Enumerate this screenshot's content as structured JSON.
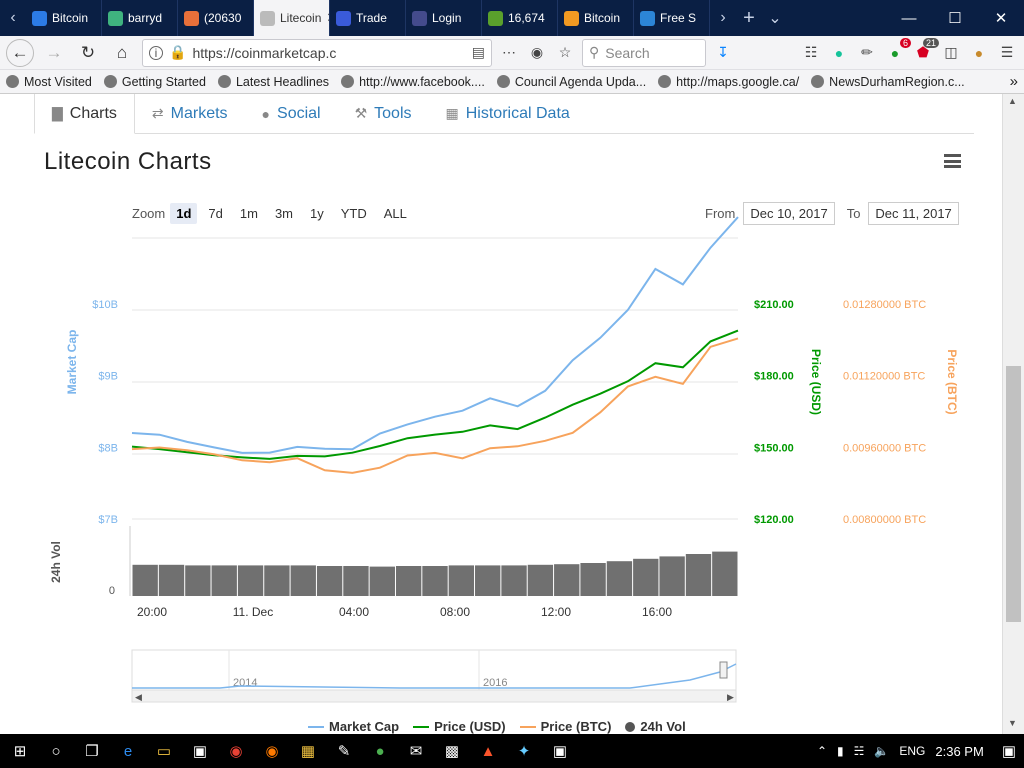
{
  "browser": {
    "tabs": [
      {
        "title": "Bitcoin",
        "color": "#2c7be5"
      },
      {
        "title": "barryd",
        "color": "#3fb37f"
      },
      {
        "title": "(20630",
        "color": "#e8703a"
      },
      {
        "title": "Litecoin",
        "color": "#bbbbbb",
        "active": true
      },
      {
        "title": "Trade",
        "color": "#3a5bd9"
      },
      {
        "title": "Login",
        "color": "#444b8c"
      },
      {
        "title": "16,674",
        "color": "#5aa02c"
      },
      {
        "title": "Bitcoin",
        "color": "#f29a22"
      },
      {
        "title": "Free S",
        "color": "#2c85d6"
      }
    ],
    "url": "https://coinmarketcap.c",
    "search_placeholder": "Search",
    "badges": {
      "ext1": "6",
      "ext2": "21"
    },
    "bookmarks": [
      "Most Visited",
      "Getting Started",
      "Latest Headlines",
      "http://www.facebook....",
      "Council Agenda Upda...",
      "http://maps.google.ca/",
      "NewsDurhamRegion.c..."
    ]
  },
  "content_tabs": [
    {
      "label": "Charts",
      "icon": "bar-chart-icon",
      "active": true
    },
    {
      "label": "Markets",
      "icon": "exchange-icon"
    },
    {
      "label": "Social",
      "icon": "globe-icon"
    },
    {
      "label": "Tools",
      "icon": "wrench-icon"
    },
    {
      "label": "Historical Data",
      "icon": "calendar-icon"
    }
  ],
  "chart_title": "Litecoin Charts",
  "zoom": {
    "label": "Zoom",
    "options": [
      "1d",
      "7d",
      "1m",
      "3m",
      "1y",
      "YTD",
      "ALL"
    ],
    "selected": "1d"
  },
  "range": {
    "from_label": "From",
    "from": "Dec 10, 2017",
    "to_label": "To",
    "to": "Dec 11, 2017"
  },
  "chart_data": {
    "type": "line",
    "x_ticks": [
      "20:00",
      "11. Dec",
      "04:00",
      "08:00",
      "12:00",
      "16:00"
    ],
    "axes": {
      "market_cap": {
        "label": "Market Cap",
        "ticks": [
          "$7B",
          "$8B",
          "$9B",
          "$10B"
        ],
        "color": "#7cb5ec"
      },
      "price_usd": {
        "label": "Price (USD)",
        "ticks": [
          "$120.00",
          "$150.00",
          "$180.00",
          "$210.00"
        ],
        "color": "#009900"
      },
      "price_btc": {
        "label": "Price (BTC)",
        "ticks": [
          "0.00800000 BTC",
          "0.00960000 BTC",
          "0.01120000 BTC",
          "0.01280000 BTC"
        ],
        "color": "#f7a35c"
      },
      "volume": {
        "label": "24h Vol",
        "ticks": [
          "0"
        ]
      }
    },
    "series": [
      {
        "name": "Market Cap",
        "color": "#7cb5ec",
        "values": [
          8.2,
          8.2,
          8.1,
          8.0,
          7.9,
          7.9,
          8.0,
          8.0,
          8.0,
          8.2,
          8.3,
          8.4,
          8.5,
          8.7,
          8.6,
          8.8,
          9.2,
          9.5,
          9.9,
          10.5,
          10.3,
          10.8,
          11.2
        ]
      },
      {
        "name": "Price (USD)",
        "color": "#009900",
        "values": [
          151,
          150,
          148,
          146,
          145,
          145,
          147,
          147,
          148,
          150,
          153,
          155,
          157,
          160,
          158,
          162,
          167,
          172,
          178,
          186,
          184,
          194,
          198
        ]
      },
      {
        "name": "Price (BTC)",
        "color": "#f7a35c",
        "values": [
          0.0096,
          0.0096,
          0.0095,
          0.0094,
          0.0093,
          0.0093,
          0.0094,
          0.0091,
          0.009,
          0.0091,
          0.0094,
          0.0095,
          0.0094,
          0.0096,
          0.0096,
          0.0097,
          0.0099,
          0.0104,
          0.011,
          0.0112,
          0.011,
          0.0118,
          0.012
        ]
      },
      {
        "name": "24h Vol",
        "color": "#555555",
        "values": [
          0.52,
          0.52,
          0.51,
          0.51,
          0.51,
          0.51,
          0.51,
          0.5,
          0.5,
          0.49,
          0.5,
          0.5,
          0.51,
          0.51,
          0.51,
          0.52,
          0.53,
          0.55,
          0.58,
          0.62,
          0.66,
          0.7,
          0.74
        ]
      }
    ],
    "navigator_ticks": [
      "2014",
      "2016"
    ],
    "legend": [
      "Market Cap",
      "Price (USD)",
      "Price (BTC)",
      "24h Vol"
    ]
  },
  "taskbar": {
    "lang": "ENG",
    "time": "2:36 PM"
  }
}
